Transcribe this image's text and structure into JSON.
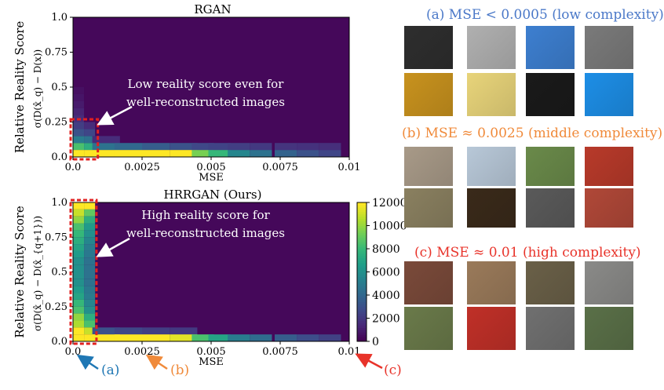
{
  "chart_data": [
    {
      "type": "heatmap",
      "title": "RGAN",
      "xlabel": "MSE",
      "ylabel": "Relative Reality Score",
      "ylabel_formula": "σ(D(x̂_q) − D(x))",
      "xlim": [
        0,
        0.01
      ],
      "ylim": [
        0,
        1.0
      ],
      "xticks": [
        "0.0",
        "0.0025",
        "0.005",
        "0.0075",
        "0.01"
      ],
      "yticks": [
        "0.0",
        "0.25",
        "0.5",
        "0.75",
        "1.0"
      ],
      "annotation": [
        "Low reality score even for",
        "well-reconstructed images"
      ],
      "cells": [
        {
          "x": 0.0002,
          "y": 0.025,
          "v": 12000
        },
        {
          "x": 0.0006,
          "y": 0.025,
          "v": 12000
        },
        {
          "x": 0.0012,
          "y": 0.025,
          "v": 12000
        },
        {
          "x": 0.002,
          "y": 0.025,
          "v": 12000
        },
        {
          "x": 0.003,
          "y": 0.025,
          "v": 12000
        },
        {
          "x": 0.004,
          "y": 0.025,
          "v": 12000
        },
        {
          "x": 0.0047,
          "y": 0.025,
          "v": 9500
        },
        {
          "x": 0.0053,
          "y": 0.025,
          "v": 8000
        },
        {
          "x": 0.006,
          "y": 0.025,
          "v": 5500
        },
        {
          "x": 0.0068,
          "y": 0.025,
          "v": 4500
        },
        {
          "x": 0.0077,
          "y": 0.025,
          "v": 3800
        },
        {
          "x": 0.0085,
          "y": 0.025,
          "v": 3000
        },
        {
          "x": 0.0093,
          "y": 0.025,
          "v": 2500
        },
        {
          "x": 0.0002,
          "y": 0.075,
          "v": 8500
        },
        {
          "x": 0.0006,
          "y": 0.075,
          "v": 7500
        },
        {
          "x": 0.0012,
          "y": 0.075,
          "v": 4500
        },
        {
          "x": 0.002,
          "y": 0.075,
          "v": 4000
        },
        {
          "x": 0.003,
          "y": 0.075,
          "v": 3500
        },
        {
          "x": 0.004,
          "y": 0.075,
          "v": 3000
        },
        {
          "x": 0.0047,
          "y": 0.075,
          "v": 2600
        },
        {
          "x": 0.0053,
          "y": 0.075,
          "v": 2400
        },
        {
          "x": 0.006,
          "y": 0.075,
          "v": 2200
        },
        {
          "x": 0.0068,
          "y": 0.075,
          "v": 2000
        },
        {
          "x": 0.0077,
          "y": 0.075,
          "v": 1800
        },
        {
          "x": 0.0085,
          "y": 0.075,
          "v": 1700
        },
        {
          "x": 0.0093,
          "y": 0.075,
          "v": 1600
        },
        {
          "x": 0.0002,
          "y": 0.125,
          "v": 5000
        },
        {
          "x": 0.0006,
          "y": 0.125,
          "v": 4500
        },
        {
          "x": 0.0012,
          "y": 0.125,
          "v": 1500
        },
        {
          "x": 0.0002,
          "y": 0.175,
          "v": 3000
        },
        {
          "x": 0.0006,
          "y": 0.175,
          "v": 2500
        },
        {
          "x": 0.0002,
          "y": 0.225,
          "v": 2200
        },
        {
          "x": 0.0006,
          "y": 0.225,
          "v": 1500
        },
        {
          "x": 0.0002,
          "y": 0.275,
          "v": 1500
        },
        {
          "x": 0.0002,
          "y": 0.325,
          "v": 1200
        },
        {
          "x": 0.0002,
          "y": 0.375,
          "v": 900
        },
        {
          "x": 0.0002,
          "y": 0.425,
          "v": 700
        },
        {
          "x": 0.0002,
          "y": 0.475,
          "v": 500
        }
      ]
    },
    {
      "type": "heatmap",
      "title": "HRRGAN (Ours)",
      "xlabel": "MSE",
      "ylabel": "Relative Reality Score",
      "ylabel_formula": "σ(D(x̂_q) − D(x̂_{q+1}))",
      "xlim": [
        0,
        0.01
      ],
      "ylim": [
        0,
        1.0
      ],
      "xticks": [
        "0.0",
        "0.0025",
        "0.005",
        "0.0075",
        "0.01"
      ],
      "yticks": [
        "0.0",
        "0.25",
        "0.5",
        "0.75",
        "1.0"
      ],
      "annotation": [
        "High reality score for",
        "well-reconstructed images"
      ],
      "colorbar": {
        "min": 0,
        "max": 12000,
        "ticks": [
          "0",
          "2000",
          "4000",
          "6000",
          "8000",
          "10000",
          "12000"
        ]
      },
      "cells": [
        {
          "x": 0.0002,
          "y": 0.975,
          "v": 12000
        },
        {
          "x": 0.0006,
          "y": 0.975,
          "v": 12000
        },
        {
          "x": 0.0002,
          "y": 0.925,
          "v": 11000
        },
        {
          "x": 0.0006,
          "y": 0.925,
          "v": 9000
        },
        {
          "x": 0.0002,
          "y": 0.875,
          "v": 10000
        },
        {
          "x": 0.0006,
          "y": 0.875,
          "v": 7500
        },
        {
          "x": 0.0002,
          "y": 0.825,
          "v": 8500
        },
        {
          "x": 0.0006,
          "y": 0.825,
          "v": 6500
        },
        {
          "x": 0.0002,
          "y": 0.775,
          "v": 8000
        },
        {
          "x": 0.0006,
          "y": 0.775,
          "v": 6000
        },
        {
          "x": 0.0002,
          "y": 0.725,
          "v": 7500
        },
        {
          "x": 0.0006,
          "y": 0.725,
          "v": 5500
        },
        {
          "x": 0.0002,
          "y": 0.675,
          "v": 7000
        },
        {
          "x": 0.0006,
          "y": 0.675,
          "v": 5000
        },
        {
          "x": 0.0002,
          "y": 0.625,
          "v": 6500
        },
        {
          "x": 0.0006,
          "y": 0.625,
          "v": 4800
        },
        {
          "x": 0.0002,
          "y": 0.575,
          "v": 6000
        },
        {
          "x": 0.0006,
          "y": 0.575,
          "v": 4500
        },
        {
          "x": 0.0002,
          "y": 0.525,
          "v": 6000
        },
        {
          "x": 0.0006,
          "y": 0.525,
          "v": 4500
        },
        {
          "x": 0.0002,
          "y": 0.475,
          "v": 6000
        },
        {
          "x": 0.0006,
          "y": 0.475,
          "v": 4500
        },
        {
          "x": 0.0002,
          "y": 0.425,
          "v": 6000
        },
        {
          "x": 0.0006,
          "y": 0.425,
          "v": 4500
        },
        {
          "x": 0.0002,
          "y": 0.375,
          "v": 6500
        },
        {
          "x": 0.0006,
          "y": 0.375,
          "v": 4800
        },
        {
          "x": 0.0002,
          "y": 0.325,
          "v": 7000
        },
        {
          "x": 0.0006,
          "y": 0.325,
          "v": 5000
        },
        {
          "x": 0.0002,
          "y": 0.275,
          "v": 8000
        },
        {
          "x": 0.0006,
          "y": 0.275,
          "v": 5500
        },
        {
          "x": 0.0002,
          "y": 0.225,
          "v": 8500
        },
        {
          "x": 0.0006,
          "y": 0.225,
          "v": 6000
        },
        {
          "x": 0.0002,
          "y": 0.175,
          "v": 10000
        },
        {
          "x": 0.0006,
          "y": 0.175,
          "v": 7500
        },
        {
          "x": 0.0002,
          "y": 0.125,
          "v": 10500
        },
        {
          "x": 0.0006,
          "y": 0.125,
          "v": 8500
        },
        {
          "x": 0.0002,
          "y": 0.075,
          "v": 12000
        },
        {
          "x": 0.0006,
          "y": 0.075,
          "v": 11000
        },
        {
          "x": 0.0012,
          "y": 0.075,
          "v": 3000
        },
        {
          "x": 0.002,
          "y": 0.075,
          "v": 2500
        },
        {
          "x": 0.003,
          "y": 0.075,
          "v": 2200
        },
        {
          "x": 0.004,
          "y": 0.075,
          "v": 2000
        },
        {
          "x": 0.0002,
          "y": 0.025,
          "v": 12000
        },
        {
          "x": 0.0006,
          "y": 0.025,
          "v": 12000
        },
        {
          "x": 0.0012,
          "y": 0.025,
          "v": 12000
        },
        {
          "x": 0.002,
          "y": 0.025,
          "v": 12000
        },
        {
          "x": 0.003,
          "y": 0.025,
          "v": 12000
        },
        {
          "x": 0.004,
          "y": 0.025,
          "v": 11500
        },
        {
          "x": 0.0047,
          "y": 0.025,
          "v": 8500
        },
        {
          "x": 0.0053,
          "y": 0.025,
          "v": 7000
        },
        {
          "x": 0.006,
          "y": 0.025,
          "v": 5000
        },
        {
          "x": 0.0068,
          "y": 0.025,
          "v": 4200
        },
        {
          "x": 0.0077,
          "y": 0.025,
          "v": 3500
        },
        {
          "x": 0.0085,
          "y": 0.025,
          "v": 2800
        },
        {
          "x": 0.0093,
          "y": 0.025,
          "v": 2300
        }
      ]
    }
  ],
  "markers": {
    "a": "(a)",
    "b": "(b)",
    "c": "(c)"
  },
  "colors": {
    "a": "#1f77b4",
    "b": "#f08a3a",
    "c": "#e8332a",
    "box": "#e02020"
  },
  "groups": [
    {
      "caption": "(a) MSE < 0.0005 (low complexity)",
      "color": "#4a78c8",
      "thumbs": [
        "#2e2e2e",
        "#b0b0b0",
        "#3d7fd0",
        "#7a7a7a",
        "#c8921e",
        "#e8d47a",
        "#1a1a1a",
        "#1d8ee6"
      ]
    },
    {
      "caption": "(b) MSE ≈ 0.0025 (middle complexity)",
      "color": "#f08a3a",
      "thumbs": [
        "#a89a88",
        "#b8c8d8",
        "#6a8a4a",
        "#b83a2a",
        "#8a8060",
        "#3a2a1a",
        "#5a5a5a",
        "#b04838"
      ]
    },
    {
      "caption": "(c) MSE ≈ 0.01 (high complexity)",
      "color": "#e8332a",
      "thumbs": [
        "#7a4a3a",
        "#9a7a5a",
        "#6a6048",
        "#8a8a88",
        "#6a7a4a",
        "#c03028",
        "#707070",
        "#5a7048"
      ]
    }
  ]
}
